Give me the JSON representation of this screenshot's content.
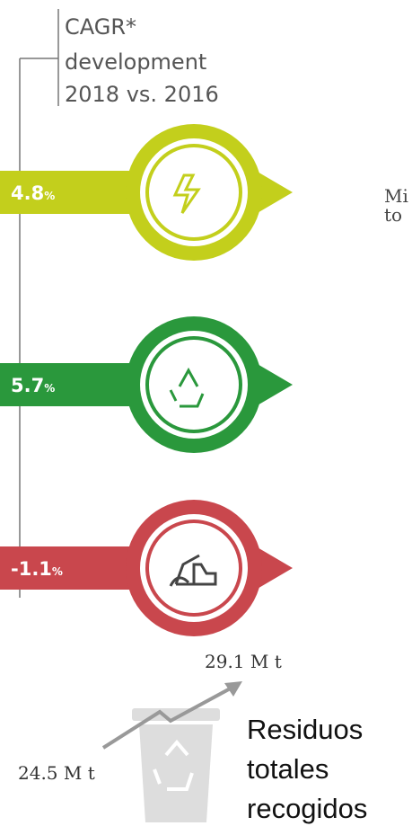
{
  "header": {
    "lines": [
      "CAGR*",
      "development",
      "2018 vs. 2016"
    ]
  },
  "rows": [
    {
      "value": "4.8",
      "unit": "%"
    },
    {
      "value": "5.7",
      "unit": "%"
    },
    {
      "value": "-1.1",
      "unit": "%"
    }
  ],
  "side_text": [
    "Mi",
    "to"
  ],
  "total": {
    "end": "29.1 M t",
    "start": "24.5 M t",
    "label": [
      "Residuos",
      "totales",
      "recogidos"
    ]
  }
}
